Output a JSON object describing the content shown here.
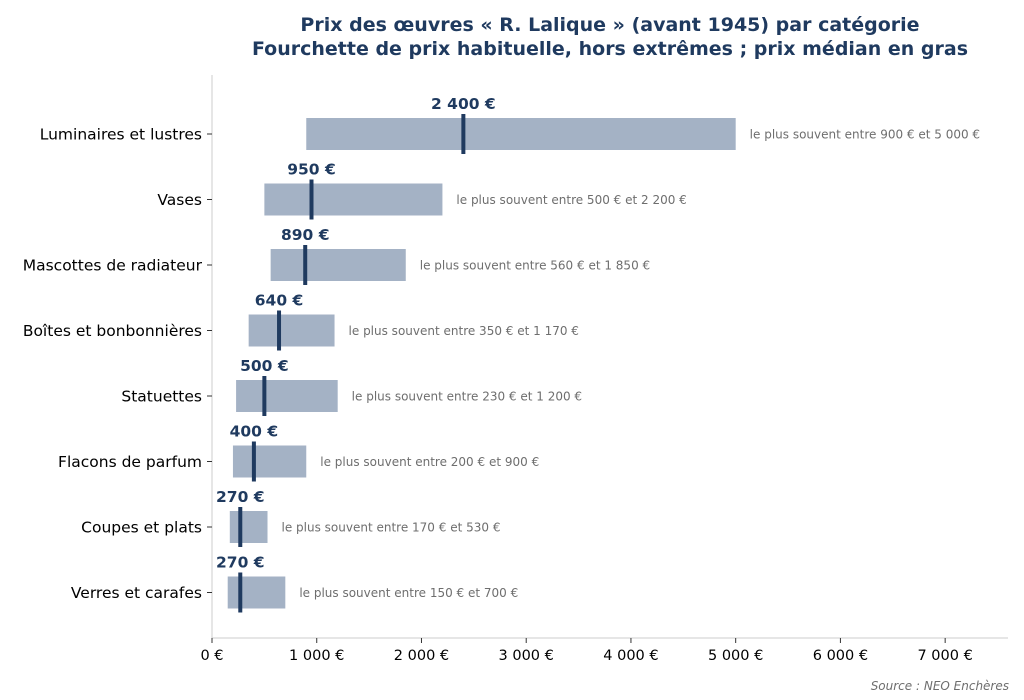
{
  "chart_data": {
    "type": "bar",
    "title": "Prix des œuvres « R. Lalique » (avant 1945) par catégorie",
    "subtitle": "Fourchette de prix habituelle, hors extrêmes ; prix médian en gras",
    "source": "Source : NEO Enchères",
    "xlim": [
      0,
      7600
    ],
    "x_ticks": [
      0,
      1000,
      2000,
      3000,
      4000,
      5000,
      6000,
      7000
    ],
    "x_tick_labels": [
      "0 €",
      "1 000 €",
      "2 000 €",
      "3 000 €",
      "4 000 €",
      "5 000 €",
      "6 000 €",
      "7 000 €"
    ],
    "categories": [
      "Luminaires et lustres",
      "Vases",
      "Mascottes de radiateur",
      "Boîtes et bonbonnières",
      "Statuettes",
      "Flacons de parfum",
      "Coupes et plats",
      "Verres et carafes"
    ],
    "low": [
      900,
      500,
      560,
      350,
      230,
      200,
      170,
      150
    ],
    "high": [
      5000,
      2200,
      1850,
      1170,
      1200,
      900,
      530,
      700
    ],
    "median": [
      2400,
      950,
      890,
      640,
      500,
      400,
      270,
      270
    ],
    "median_labels": [
      "2 400 €",
      "950 €",
      "890 €",
      "640 €",
      "500 €",
      "400 €",
      "270 €",
      "270 €"
    ],
    "range_labels": [
      "le plus souvent entre 900 € et 5 000 €",
      "le plus souvent entre 500 € et 2 200 €",
      "le plus souvent entre 560 € et 1 850 €",
      "le plus souvent entre 350 € et 1 170 €",
      "le plus souvent entre 230 € et 1 200 €",
      "le plus souvent entre 200 € et 900 €",
      "le plus souvent entre 170 € et 530 €",
      "le plus souvent entre 150 € et 700 €"
    ],
    "colors": {
      "range": "#a4b2c5",
      "median": "#1f3a5f",
      "title": "#1f3a5f",
      "range_label": "#6e6e6e",
      "axis": "#cccccc"
    },
    "grid": false,
    "legend": "none"
  }
}
